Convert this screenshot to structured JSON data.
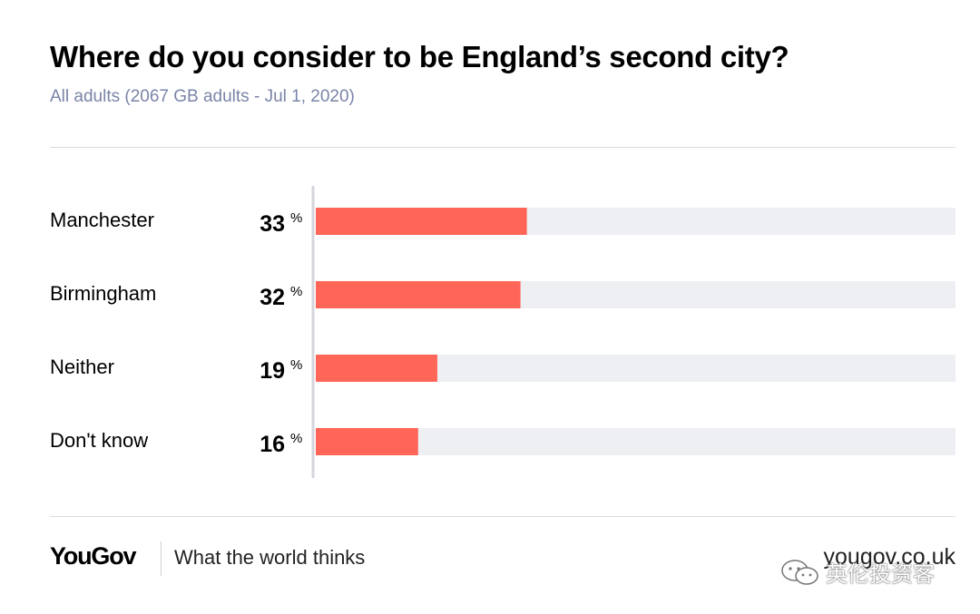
{
  "header": {
    "title": "Where do you consider to be England’s second city?",
    "subtitle": "All adults (2067 GB adults - Jul 1, 2020)"
  },
  "chart_data": {
    "type": "bar",
    "orientation": "horizontal",
    "title": "Where do you consider to be England’s second city?",
    "categories": [
      "Manchester",
      "Birmingham",
      "Neither",
      "Don't know"
    ],
    "values": [
      33,
      32,
      19,
      16
    ],
    "unit": "%",
    "xlim": [
      0,
      100
    ],
    "colors": {
      "bar": "#ff6658",
      "track": "#eeeff3",
      "axis": "#d5d6dc"
    }
  },
  "footer": {
    "brand": "YouGov",
    "tagline": "What the world thinks",
    "site": "yougov.co.uk",
    "watermark_text": "英伦投资客",
    "watermark_icon": "wechat-icon"
  }
}
